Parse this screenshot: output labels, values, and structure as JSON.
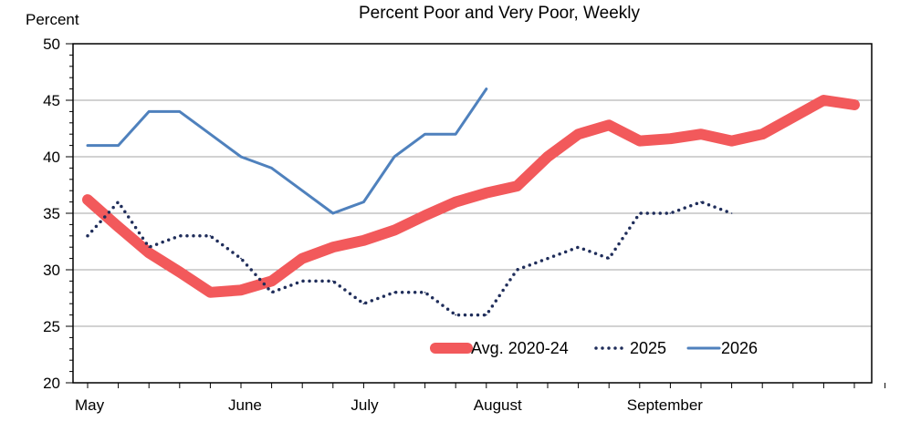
{
  "chart_data": {
    "type": "line",
    "title": "Percent Poor and Very Poor, Weekly",
    "ylabel": "Percent",
    "xlabel": "",
    "ylim": [
      20,
      50
    ],
    "yticks": [
      20,
      25,
      30,
      35,
      40,
      45,
      50
    ],
    "x_week_range": [
      1,
      27
    ],
    "x_month_labels": [
      {
        "label": "May",
        "week": 1
      },
      {
        "label": "June",
        "week": 6
      },
      {
        "label": "July",
        "week": 10
      },
      {
        "label": "August",
        "week": 14
      },
      {
        "label": "September",
        "week": 19
      }
    ],
    "grid": true,
    "legend_position": "bottom-right",
    "series": [
      {
        "name": "Avg. 2020-24",
        "style": "thick-solid",
        "color": "#f2595b",
        "points": [
          [
            1,
            36.2
          ],
          [
            2,
            33.8
          ],
          [
            3,
            31.5
          ],
          [
            4,
            29.8
          ],
          [
            5,
            28.0
          ],
          [
            6,
            28.2
          ],
          [
            7,
            29.0
          ],
          [
            8,
            31.0
          ],
          [
            9,
            32.0
          ],
          [
            10,
            32.6
          ],
          [
            11,
            33.5
          ],
          [
            12,
            34.8
          ],
          [
            13,
            36.0
          ],
          [
            14,
            36.8
          ],
          [
            15,
            37.4
          ],
          [
            16,
            40.0
          ],
          [
            17,
            42.0
          ],
          [
            18,
            42.8
          ],
          [
            19,
            41.4
          ],
          [
            20,
            41.6
          ],
          [
            21,
            42.0
          ],
          [
            22,
            41.4
          ],
          [
            23,
            42.0
          ],
          [
            24,
            43.5
          ],
          [
            25,
            45.0
          ],
          [
            26,
            44.6
          ]
        ]
      },
      {
        "name": "2025",
        "style": "dotted",
        "color": "#1f2d5a",
        "points": [
          [
            1,
            33
          ],
          [
            2,
            36
          ],
          [
            3,
            32
          ],
          [
            4,
            33
          ],
          [
            5,
            33
          ],
          [
            6,
            31
          ],
          [
            7,
            28
          ],
          [
            8,
            29
          ],
          [
            9,
            29
          ],
          [
            10,
            27
          ],
          [
            11,
            28
          ],
          [
            12,
            28
          ],
          [
            13,
            26
          ],
          [
            14,
            26
          ],
          [
            15,
            30
          ],
          [
            16,
            31
          ],
          [
            17,
            32
          ],
          [
            18,
            31
          ],
          [
            19,
            35
          ],
          [
            20,
            35
          ],
          [
            21,
            36
          ],
          [
            22,
            35
          ]
        ]
      },
      {
        "name": "2026",
        "style": "solid",
        "color": "#4f81bd",
        "points": [
          [
            1,
            41
          ],
          [
            2,
            41
          ],
          [
            3,
            44
          ],
          [
            4,
            44
          ],
          [
            5,
            42
          ],
          [
            6,
            40
          ],
          [
            7,
            39
          ],
          [
            8,
            37
          ],
          [
            9,
            35
          ],
          [
            10,
            36
          ],
          [
            11,
            40
          ],
          [
            12,
            42
          ],
          [
            13,
            42
          ],
          [
            14,
            46
          ]
        ]
      }
    ]
  }
}
